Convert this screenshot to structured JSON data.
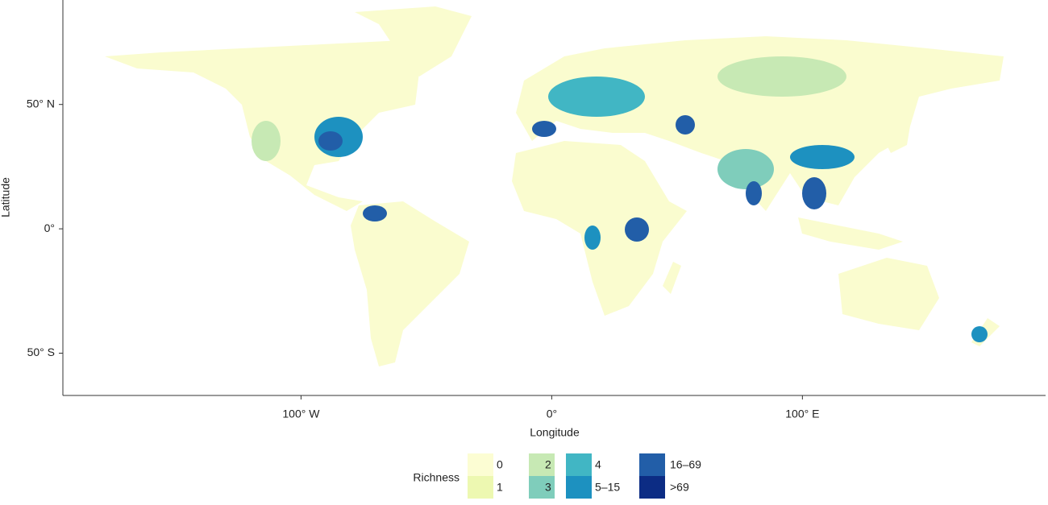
{
  "map": {
    "x_label": "Longitude",
    "y_label": "Latitude",
    "xlim": [
      -195,
      197
    ],
    "ylim": [
      -67,
      92
    ],
    "xticks": [
      {
        "value": -100,
        "label": "100° W"
      },
      {
        "value": 0,
        "label": "0°"
      },
      {
        "value": 100,
        "label": "100° E"
      }
    ],
    "yticks": [
      {
        "value": 50,
        "label": "50° N"
      },
      {
        "value": 0,
        "label": "0°"
      },
      {
        "value": -50,
        "label": "50° S"
      }
    ],
    "legend": {
      "title": "Richness",
      "items": [
        {
          "label": "0",
          "color": "#fcfdd3"
        },
        {
          "label": "1",
          "color": "#edf8b1"
        },
        {
          "label": "2",
          "color": "#c7e9b4"
        },
        {
          "label": "3",
          "color": "#7fcdbb"
        },
        {
          "label": "4",
          "color": "#41b6c4"
        },
        {
          "label": "5–15",
          "color": "#1d91c0"
        },
        {
          "label": "16–69",
          "color": "#225ea8"
        },
        {
          "label": ">69",
          "color": "#0c2c84"
        }
      ]
    }
  }
}
